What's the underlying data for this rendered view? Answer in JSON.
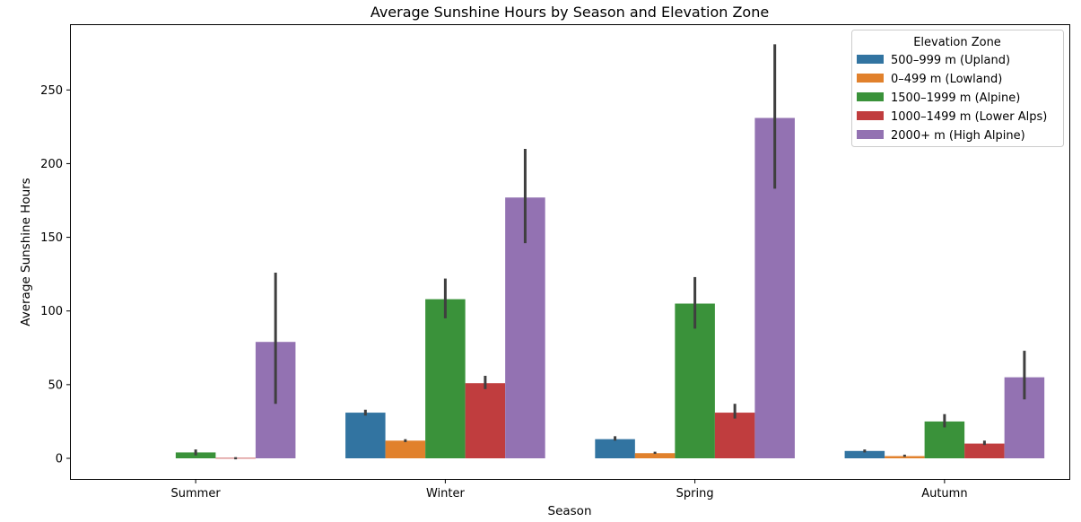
{
  "chart_data": {
    "type": "bar",
    "title": "Average Sunshine Hours by Season and Elevation Zone",
    "xlabel": "Season",
    "ylabel": "Average Sunshine Hours",
    "categories": [
      "Summer",
      "Winter",
      "Spring",
      "Autumn"
    ],
    "ylim": [
      -14,
      294
    ],
    "yticks": [
      0,
      50,
      100,
      150,
      200,
      250
    ],
    "grid": false,
    "legend": {
      "title": "Elevation Zone",
      "placement": "top-right"
    },
    "series": [
      {
        "name": "500–999 m (Upland)",
        "color": "#3274a1",
        "values": [
          null,
          31,
          13,
          5
        ],
        "err_low": [
          null,
          29,
          12,
          4
        ],
        "err_high": [
          null,
          33,
          15,
          6
        ]
      },
      {
        "name": "0–499 m (Lowland)",
        "color": "#e1812c",
        "values": [
          null,
          12,
          3.5,
          1.5
        ],
        "err_low": [
          null,
          11,
          3,
          1
        ],
        "err_high": [
          null,
          13,
          4.5,
          2.5
        ]
      },
      {
        "name": "1500–1999 m (Alpine)",
        "color": "#3a923a",
        "values": [
          4,
          108,
          105,
          25
        ],
        "err_low": [
          2,
          95,
          88,
          21
        ],
        "err_high": [
          6,
          122,
          123,
          30
        ]
      },
      {
        "name": "1000–1499 m (Lower Alps)",
        "color": "#c03d3e",
        "values": [
          0.3,
          51,
          31,
          10
        ],
        "err_low": [
          -0.7,
          47,
          27,
          9
        ],
        "err_high": [
          0.8,
          56,
          37,
          12
        ]
      },
      {
        "name": "2000+ m (High Alpine)",
        "color": "#9372b2",
        "values": [
          79,
          177,
          231,
          55
        ],
        "err_low": [
          37,
          146,
          183,
          40
        ],
        "err_high": [
          126,
          210,
          281,
          73
        ]
      }
    ]
  }
}
